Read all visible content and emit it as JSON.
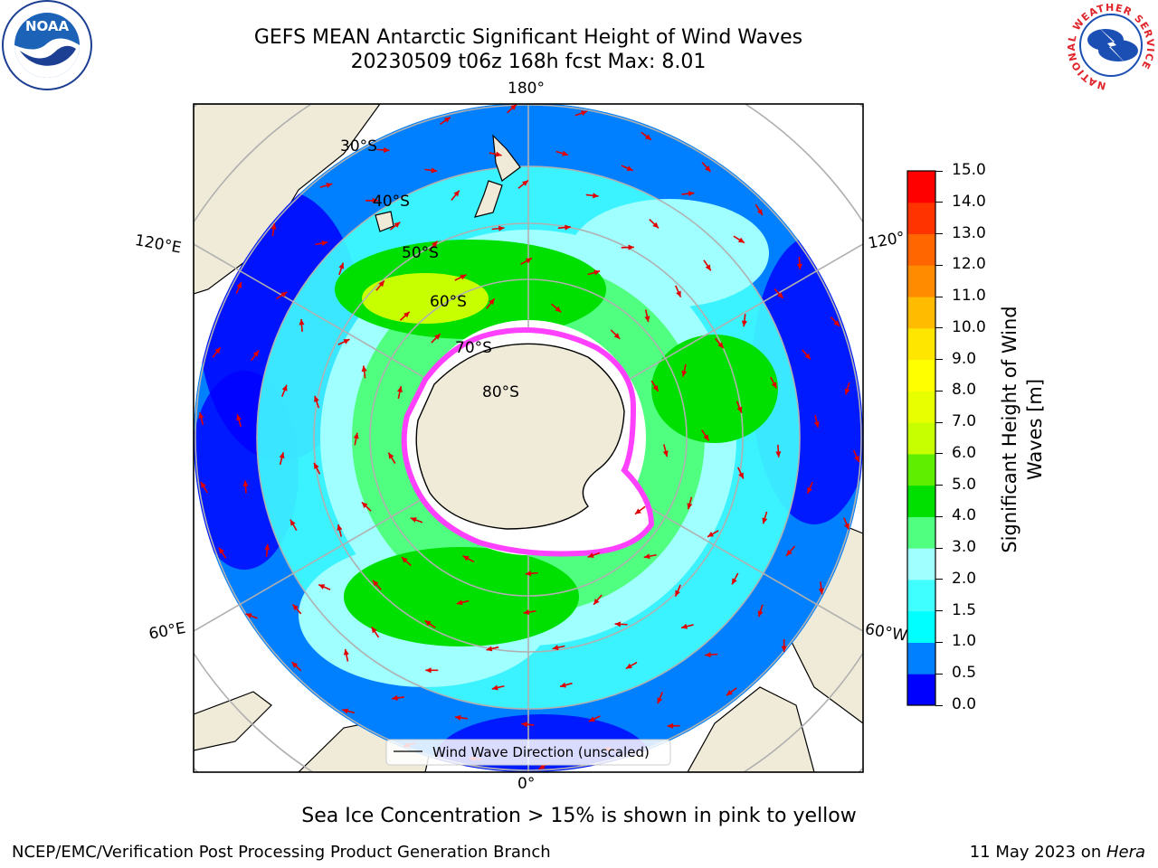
{
  "header": {
    "title_line1": "GEFS MEAN Antarctic Significant Height of Wind Waves",
    "title_line2": "20230509 t06z 168h fcst   Max: 8.01"
  },
  "logos": {
    "noaa_text": "NOAA",
    "nws_ring_text": "NATIONAL WEATHER SERVICE"
  },
  "map": {
    "lon_labels": [
      {
        "text": "180°"
      },
      {
        "text": "120°E"
      },
      {
        "text": "120°"
      },
      {
        "text": "60°E"
      },
      {
        "text": "60°W"
      },
      {
        "text": "0°"
      }
    ],
    "lat_labels": [
      {
        "text": "30°S"
      },
      {
        "text": "40°S"
      },
      {
        "text": "50°S"
      },
      {
        "text": "60°S"
      },
      {
        "text": "70°S"
      },
      {
        "text": "80°S"
      }
    ],
    "legend_label": "Wind Wave Direction (unscaled)"
  },
  "colorbar": {
    "label_line1": "Significant Height of Wind",
    "label_line2": "Waves [m]",
    "ticks": [
      "0.0",
      "0.5",
      "1.0",
      "1.5",
      "2.0",
      "3.0",
      "4.0",
      "5.0",
      "6.0",
      "7.0",
      "8.0",
      "9.0",
      "10.0",
      "11.0",
      "12.0",
      "13.0",
      "14.0",
      "15.0"
    ],
    "colors": [
      "#0000ff",
      "#0080ff",
      "#00ffff",
      "#40ffff",
      "#a0ffff",
      "#50ff80",
      "#00e000",
      "#60ee00",
      "#c8ff00",
      "#e8ff00",
      "#ffff00",
      "#ffe600",
      "#ffbb00",
      "#ff8c00",
      "#ff6600",
      "#ff3300",
      "#ff0000"
    ]
  },
  "footer": {
    "sea_ice_note": "Sea Ice Concentration > 15% is shown in pink to yellow",
    "branch": "NCEP/EMC/Verification Post Processing Product Generation Branch",
    "date": "11 May 2023 on ",
    "machine": "Hera"
  }
}
